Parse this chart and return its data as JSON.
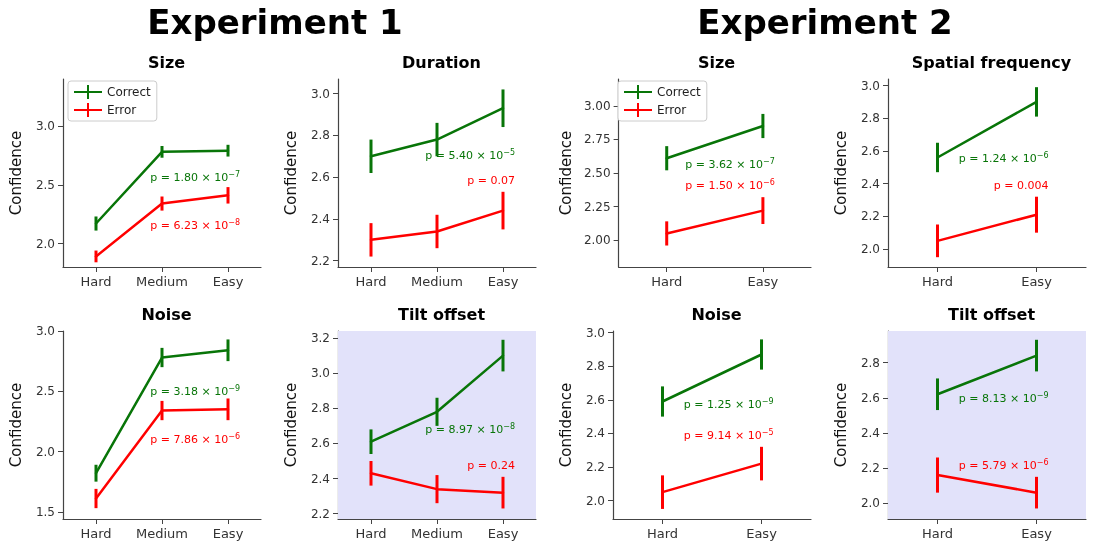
{
  "chart_data": [
    {
      "type": "line",
      "title": "Size",
      "ylabel": "Confidence",
      "categories": [
        "Hard",
        "Medium",
        "Easy"
      ],
      "ylim": [
        1.8,
        3.4
      ],
      "yticks": [
        {
          "value": 2,
          "label": "2.0"
        },
        {
          "value": 2.5,
          "label": "2.5"
        },
        {
          "value": 3,
          "label": "3.0"
        }
      ],
      "grid": false,
      "legend": "top left",
      "marker": "none",
      "line_style": "solid",
      "series": [
        {
          "name": "Correct",
          "color": "#087508",
          "values": [
            2.17,
            2.78,
            2.79
          ],
          "errors": [
            0.06,
            0.05,
            0.05
          ]
        },
        {
          "name": "Error",
          "color": "#ff0000",
          "values": [
            1.89,
            2.34,
            2.41
          ],
          "errors": [
            0.05,
            0.06,
            0.07
          ]
        }
      ],
      "annotations": [
        "Experiment 1",
        "p = 1.80 × 10$^{−7}$",
        "p = 6.23 × 10$^{−8}$"
      ]
    },
    {
      "type": "line",
      "title": "Duration",
      "ylabel": "Confidence",
      "categories": [
        "Hard",
        "Medium",
        "Easy"
      ],
      "ylim": [
        2.17,
        3.07
      ],
      "yticks": [
        {
          "value": 2.2,
          "label": "2.2"
        },
        {
          "value": 2.4,
          "label": "2.4"
        },
        {
          "value": 2.6,
          "label": "2.6"
        },
        {
          "value": 2.8,
          "label": "2.8"
        },
        {
          "value": 3,
          "label": "3.0"
        }
      ],
      "grid": false,
      "marker": "none",
      "line_style": "solid",
      "series": [
        {
          "color": "#087508",
          "values": [
            2.7,
            2.78,
            2.93
          ],
          "errors": [
            0.08,
            0.08,
            0.09
          ]
        },
        {
          "color": "#ff0000",
          "values": [
            2.3,
            2.34,
            2.44
          ],
          "errors": [
            0.08,
            0.08,
            0.09
          ]
        }
      ],
      "annotations": [
        "p = 5.40 × 10$^{−5}$",
        "p = 0.07"
      ]
    },
    {
      "type": "line",
      "title": "Size",
      "ylabel": "Confidence",
      "categories": [
        "Hard",
        "Easy"
      ],
      "ylim": [
        1.8,
        3.2
      ],
      "yticks": [
        {
          "value": 2,
          "label": "2.00"
        },
        {
          "value": 2.25,
          "label": "2.25"
        },
        {
          "value": 2.5,
          "label": "2.50"
        },
        {
          "value": 2.75,
          "label": "2.75"
        },
        {
          "value": 3,
          "label": "3.00"
        }
      ],
      "grid": false,
      "legend": "top left",
      "marker": "none",
      "line_style": "solid",
      "series": [
        {
          "name": "Correct",
          "color": "#087508",
          "values": [
            2.61,
            2.85
          ],
          "errors": [
            0.09,
            0.09
          ]
        },
        {
          "name": "Error",
          "color": "#ff0000",
          "values": [
            2.05,
            2.22
          ],
          "errors": [
            0.09,
            0.1
          ]
        }
      ],
      "annotations": [
        "Experiment 2",
        "p = 3.62 × 10$^{−7}$",
        "p = 1.50 × 10$^{−6}$"
      ]
    },
    {
      "type": "line",
      "title": "Spatial frequency",
      "ylabel": "Confidence",
      "categories": [
        "Hard",
        "Easy"
      ],
      "ylim": [
        1.89,
        3.04
      ],
      "yticks": [
        {
          "value": 2,
          "label": "2.0"
        },
        {
          "value": 2.2,
          "label": "2.2"
        },
        {
          "value": 2.4,
          "label": "2.4"
        },
        {
          "value": 2.6,
          "label": "2.6"
        },
        {
          "value": 2.8,
          "label": "2.8"
        },
        {
          "value": 3,
          "label": "3.0"
        }
      ],
      "grid": false,
      "marker": "none",
      "line_style": "solid",
      "series": [
        {
          "color": "#087508",
          "values": [
            2.56,
            2.9
          ],
          "errors": [
            0.09,
            0.09
          ]
        },
        {
          "color": "#ff0000",
          "values": [
            2.05,
            2.21
          ],
          "errors": [
            0.1,
            0.11
          ]
        }
      ],
      "annotations": [
        "p = 1.24 × 10$^{−6}$",
        "p = 0.004"
      ]
    },
    {
      "type": "line",
      "title": "Noise",
      "ylabel": "Confidence",
      "categories": [
        "Hard",
        "Medium",
        "Easy"
      ],
      "ylim": [
        1.44,
        3
      ],
      "yticks": [
        {
          "value": 1.5,
          "label": "1.5"
        },
        {
          "value": 2,
          "label": "2.0"
        },
        {
          "value": 2.5,
          "label": "2.5"
        },
        {
          "value": 3,
          "label": "3.0"
        }
      ],
      "grid": false,
      "marker": "none",
      "line_style": "solid",
      "series": [
        {
          "color": "#087508",
          "values": [
            1.82,
            2.78,
            2.84
          ],
          "errors": [
            0.07,
            0.08,
            0.09
          ]
        },
        {
          "color": "#ff0000",
          "values": [
            1.61,
            2.34,
            2.35
          ],
          "errors": [
            0.08,
            0.08,
            0.09
          ]
        }
      ],
      "annotations": [
        "p = 3.18 × 10$^{−9}$",
        "p = 7.86 × 10$^{−6}$"
      ]
    },
    {
      "type": "line",
      "title": "Tilt offset",
      "ylabel": "Confidence",
      "categories": [
        "Hard",
        "Medium",
        "Easy"
      ],
      "ylim": [
        2.17,
        3.24
      ],
      "yticks": [
        {
          "value": 2.2,
          "label": "2.2"
        },
        {
          "value": 2.4,
          "label": "2.4"
        },
        {
          "value": 2.6,
          "label": "2.6"
        },
        {
          "value": 2.8,
          "label": "2.8"
        },
        {
          "value": 3,
          "label": "3.0"
        },
        {
          "value": 3.2,
          "label": "3.2"
        }
      ],
      "grid": false,
      "marker": "none",
      "line_style": "solid",
      "bands": [
        {
          "axis": "y",
          "from": 2.17,
          "to": 3.24,
          "color": "#e2e2fa"
        }
      ],
      "series": [
        {
          "color": "#087508",
          "values": [
            2.61,
            2.78,
            3.1
          ],
          "errors": [
            0.07,
            0.08,
            0.09
          ]
        },
        {
          "color": "#ff0000",
          "values": [
            2.43,
            2.34,
            2.32
          ],
          "errors": [
            0.07,
            0.08,
            0.09
          ]
        }
      ],
      "annotations": [
        "p = 8.97 × 10$^{−8}$",
        "p = 0.24"
      ]
    },
    {
      "type": "line",
      "title": "Noise",
      "ylabel": "Confidence",
      "categories": [
        "Hard",
        "Easy"
      ],
      "ylim": [
        1.89,
        3.01
      ],
      "yticks": [
        {
          "value": 2,
          "label": "2.0"
        },
        {
          "value": 2.2,
          "label": "2.2"
        },
        {
          "value": 2.4,
          "label": "2.4"
        },
        {
          "value": 2.6,
          "label": "2.6"
        },
        {
          "value": 2.8,
          "label": "2.8"
        },
        {
          "value": 3,
          "label": "3.0"
        }
      ],
      "grid": false,
      "marker": "none",
      "line_style": "solid",
      "series": [
        {
          "color": "#087508",
          "values": [
            2.59,
            2.87
          ],
          "errors": [
            0.09,
            0.09
          ]
        },
        {
          "color": "#ff0000",
          "values": [
            2.05,
            2.22
          ],
          "errors": [
            0.1,
            0.1
          ]
        }
      ],
      "annotations": [
        "p = 1.25 × 10$^{−9}$",
        "p = 9.14 × 10$^{−5}$"
      ]
    },
    {
      "type": "line",
      "title": "Tilt offset",
      "ylabel": "Confidence",
      "categories": [
        "Hard",
        "Easy"
      ],
      "ylim": [
        1.91,
        2.98
      ],
      "yticks": [
        {
          "value": 2,
          "label": "2.0"
        },
        {
          "value": 2.2,
          "label": "2.2"
        },
        {
          "value": 2.4,
          "label": "2.4"
        },
        {
          "value": 2.6,
          "label": "2.6"
        },
        {
          "value": 2.8,
          "label": "2.8"
        }
      ],
      "grid": false,
      "marker": "none",
      "line_style": "solid",
      "bands": [
        {
          "axis": "y",
          "from": 1.91,
          "to": 2.98,
          "color": "#e2e2fa"
        }
      ],
      "series": [
        {
          "color": "#087508",
          "values": [
            2.62,
            2.84
          ],
          "errors": [
            0.09,
            0.09
          ]
        },
        {
          "color": "#ff0000",
          "values": [
            2.16,
            2.06
          ],
          "errors": [
            0.1,
            0.09
          ]
        }
      ],
      "annotations": [
        "p = 8.13 × 10$^{−9}$",
        "p = 5.79 × 10$^{−6}$"
      ]
    }
  ]
}
